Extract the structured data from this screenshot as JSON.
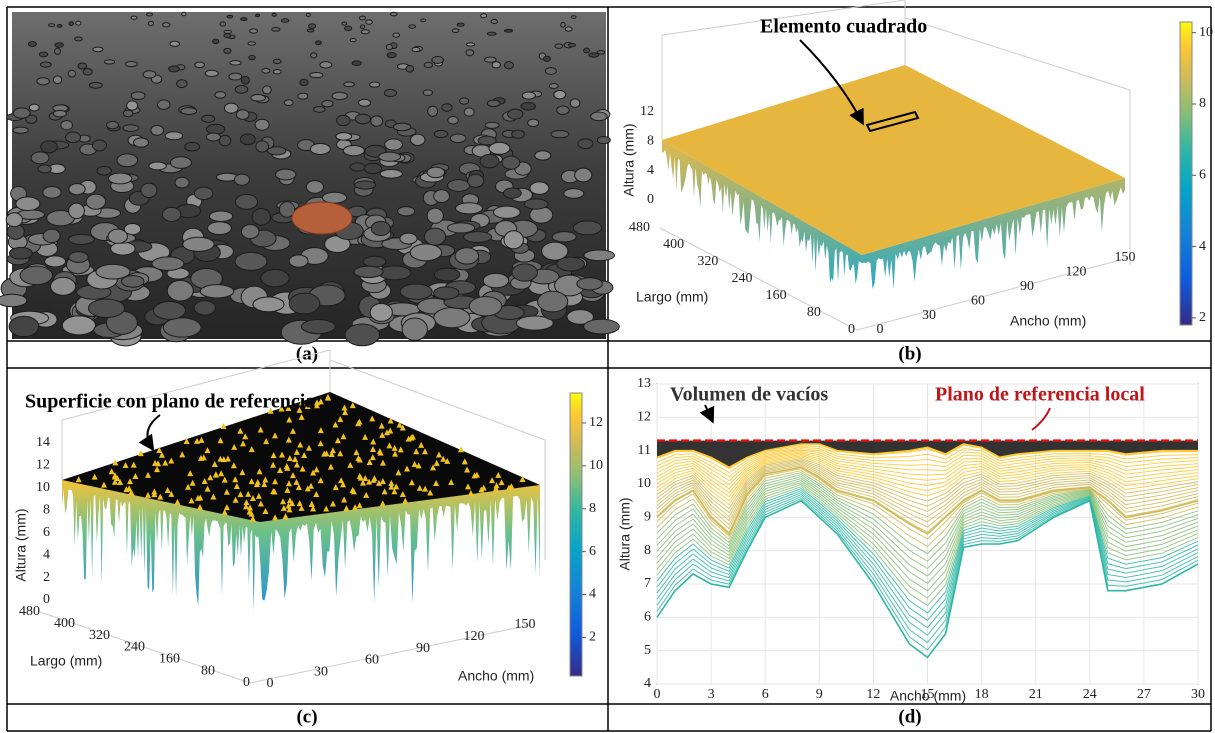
{
  "panels": [
    {
      "caption": "(a)"
    },
    {
      "caption": "(b)",
      "annotation": "Elemento cuadrado",
      "z_label": "Altura (mm)",
      "y_label": "Largo (mm)",
      "x_label": "Ancho (mm)",
      "zticks": [
        0,
        4,
        8,
        12
      ],
      "yticks": [
        480,
        400,
        320,
        240,
        160,
        80,
        0
      ],
      "xticks": [
        0,
        30,
        60,
        90,
        120,
        150
      ],
      "colorbar_lim": [
        1.8,
        10.3
      ],
      "colorbar_ticks": [
        2,
        4,
        6,
        8,
        10
      ]
    },
    {
      "caption": "(c)",
      "annotation": "Superficie con plano de referencia",
      "z_label": "Altura (mm)",
      "y_label": "Largo (mm)",
      "x_label": "Ancho (mm)",
      "zticks": [
        0,
        2,
        4,
        6,
        8,
        10,
        12,
        14
      ],
      "yticks": [
        480,
        400,
        320,
        240,
        160,
        80,
        0
      ],
      "xticks": [
        0,
        30,
        60,
        90,
        120,
        150
      ],
      "colorbar_lim": [
        0.2,
        13.4
      ],
      "colorbar_ticks": [
        2,
        4,
        6,
        8,
        10,
        12
      ]
    },
    {
      "caption": "(d)",
      "annotations": [
        "Volumen de vacíos",
        "Plano de referencia local"
      ],
      "x_label": "Ancho (mm)",
      "y_label": "Altura (mm)",
      "xlim": [
        0,
        30
      ],
      "ylim": [
        4,
        13
      ],
      "xticks": [
        0,
        3,
        6,
        9,
        12,
        15,
        18,
        21,
        24,
        27,
        30
      ],
      "yticks": [
        4,
        5,
        6,
        7,
        8,
        9,
        10,
        11,
        12,
        13
      ],
      "reference_plane": 11.3,
      "profile_x": [
        0,
        1,
        2,
        3,
        4,
        5,
        6,
        8,
        9,
        10,
        12,
        14,
        15,
        16,
        17,
        18,
        19,
        20,
        22,
        24,
        25,
        26,
        28,
        30
      ],
      "profiles": [
        [
          10.8,
          11,
          11,
          10.8,
          10.5,
          10.8,
          11,
          11.2,
          11.2,
          11,
          10.9,
          11,
          11.1,
          10.9,
          11.2,
          11.1,
          10.8,
          10.9,
          11,
          11,
          11,
          10.9,
          11,
          11
        ],
        [
          9,
          9.5,
          9.8,
          9,
          8.5,
          9.7,
          10.3,
          10.5,
          10.2,
          9.8,
          9.5,
          8.8,
          8.5,
          9,
          9.5,
          9.8,
          9.5,
          9.5,
          9.8,
          9.9,
          9.5,
          9,
          9.2,
          9.5
        ],
        [
          6,
          6.8,
          7.3,
          7,
          6.9,
          8,
          9,
          9.5,
          9,
          8.5,
          7,
          5.2,
          4.8,
          5.5,
          8.1,
          8.2,
          8.2,
          8.3,
          9,
          9.5,
          6.8,
          6.8,
          7,
          7.6
        ]
      ]
    }
  ]
}
